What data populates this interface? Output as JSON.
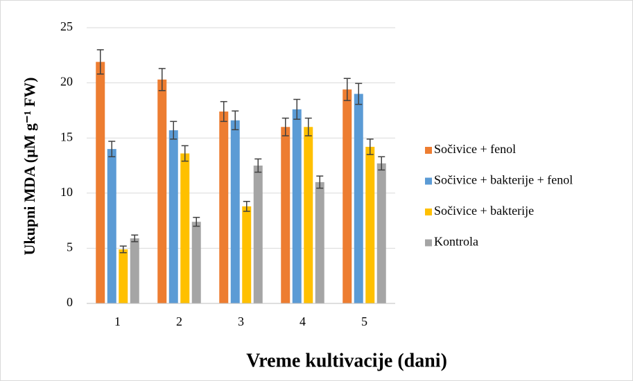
{
  "chart_data": {
    "type": "bar",
    "ylabel": "Ukupni MDA (µM g⁻¹ FW)",
    "xlabel": "Vreme kultivacije (dani)",
    "categories": [
      "1",
      "2",
      "3",
      "4",
      "5"
    ],
    "series": [
      {
        "name": "Sočivice + fenol",
        "color": "#ed7d31",
        "values": [
          21.9,
          20.3,
          17.4,
          16.0,
          19.4
        ],
        "errors": [
          1.1,
          1.0,
          0.9,
          0.8,
          1.0
        ]
      },
      {
        "name": "Sočivice + bakterije + fenol",
        "color": "#5b9bd5",
        "values": [
          14.0,
          15.7,
          16.6,
          17.6,
          19.0
        ],
        "errors": [
          0.7,
          0.8,
          0.85,
          0.9,
          0.95
        ]
      },
      {
        "name": "Sočivice + bakterije",
        "color": "#ffc000",
        "values": [
          4.9,
          13.6,
          8.8,
          16.0,
          14.2
        ],
        "errors": [
          0.3,
          0.7,
          0.45,
          0.8,
          0.7
        ]
      },
      {
        "name": "Kontrola",
        "color": "#a5a5a5",
        "values": [
          5.9,
          7.4,
          12.5,
          11.0,
          12.7
        ],
        "errors": [
          0.3,
          0.4,
          0.6,
          0.55,
          0.6
        ]
      }
    ],
    "ylim": [
      0,
      25
    ],
    "yticks": [
      0,
      5,
      10,
      15,
      20,
      25
    ],
    "grid": true,
    "legend": "right"
  }
}
